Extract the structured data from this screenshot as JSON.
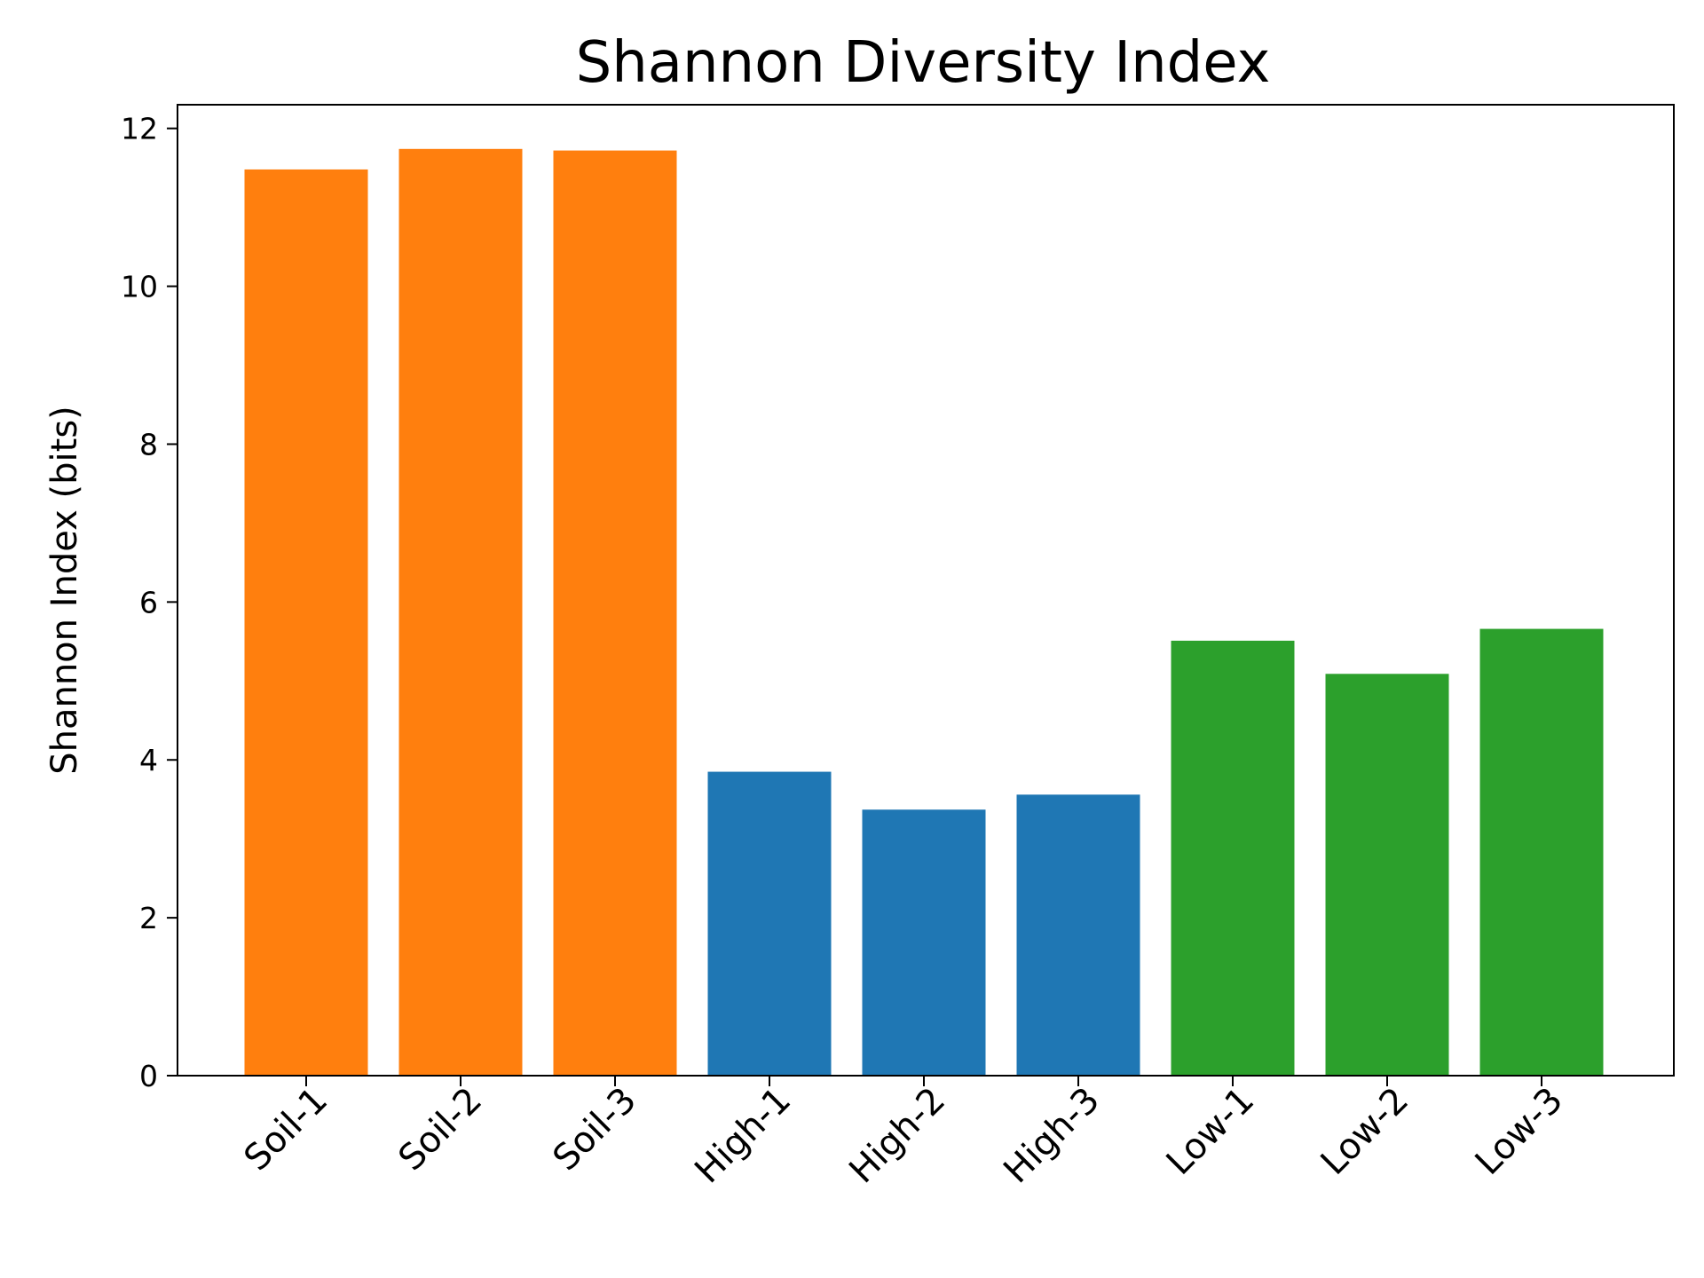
{
  "chart_data": {
    "type": "bar",
    "title": "Shannon Diversity Index",
    "xlabel": "",
    "ylabel": "Shannon Index (bits)",
    "ylim": [
      0,
      12.3
    ],
    "yticks": [
      0,
      2,
      4,
      6,
      8,
      10,
      12
    ],
    "grid": false,
    "legend": false,
    "categories": [
      "Soil-1",
      "Soil-2",
      "Soil-3",
      "High-1",
      "High-2",
      "High-3",
      "Low-1",
      "Low-2",
      "Low-3"
    ],
    "values": [
      11.48,
      11.74,
      11.72,
      3.85,
      3.37,
      3.56,
      5.51,
      5.09,
      5.66
    ],
    "colors": [
      "#ff7f0e",
      "#ff7f0e",
      "#ff7f0e",
      "#1f77b4",
      "#1f77b4",
      "#1f77b4",
      "#2ca02c",
      "#2ca02c",
      "#2ca02c"
    ]
  }
}
